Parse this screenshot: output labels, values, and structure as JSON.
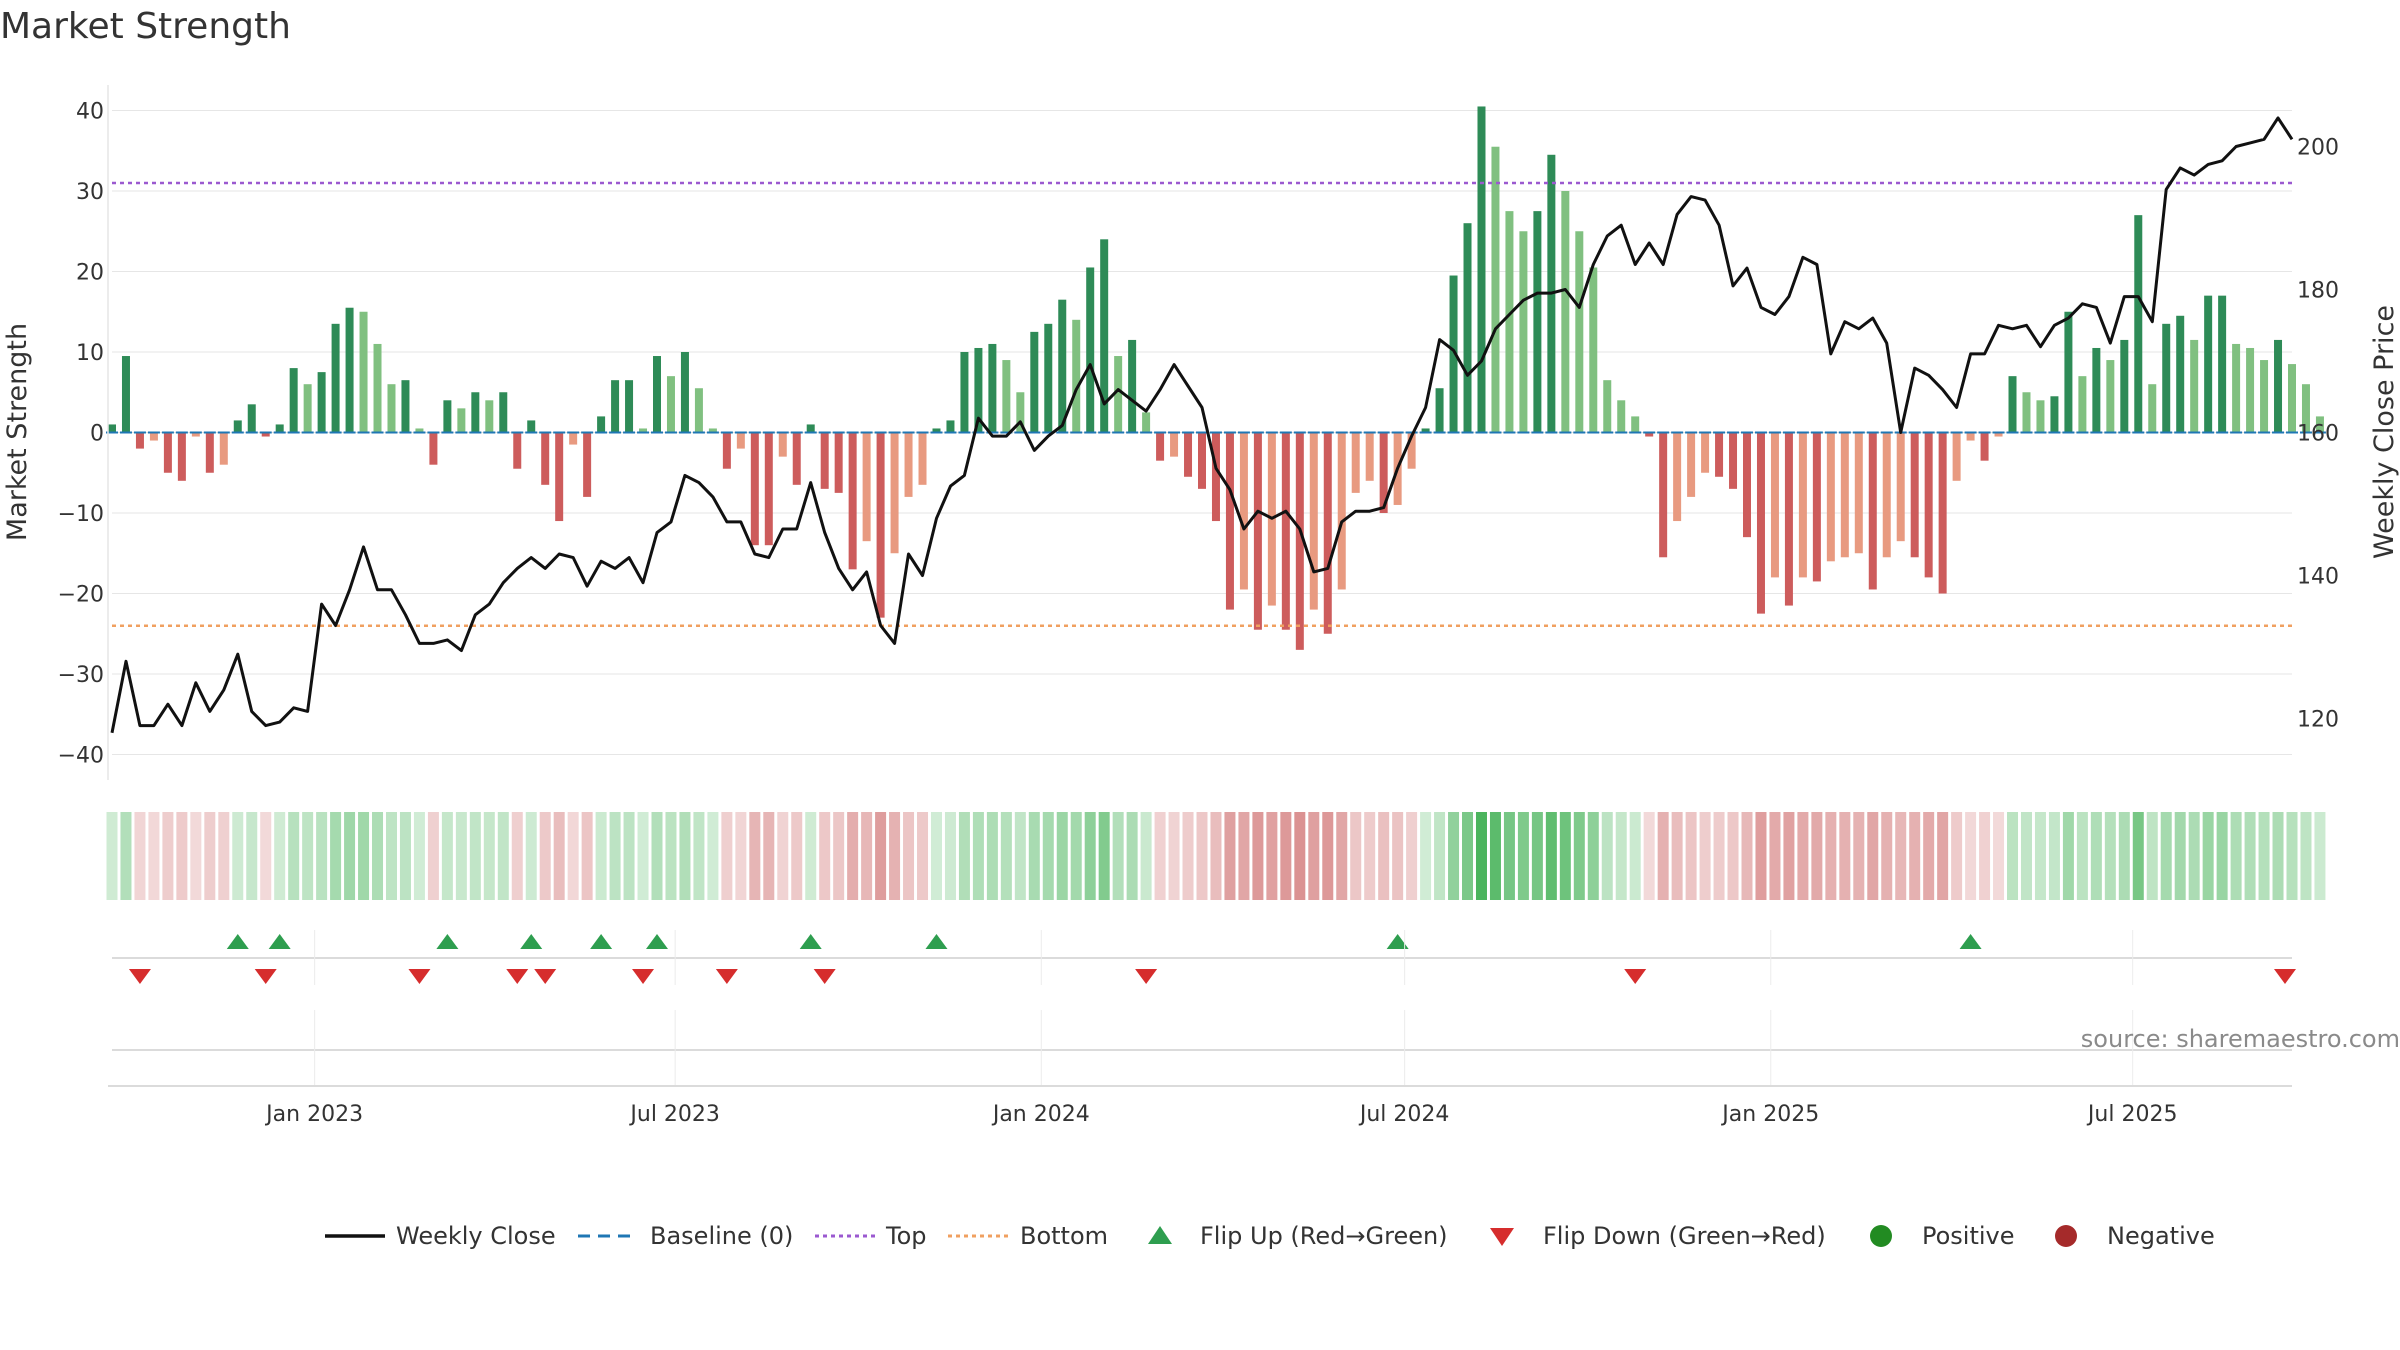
{
  "chart_data": {
    "type": "bar",
    "title": "Market Strength",
    "ylabel": "Market Strength",
    "y2label": "Weekly Close Price",
    "source": "source: sharemaestro.com",
    "ylim": [
      -43,
      42
    ],
    "yticks": [
      40,
      30,
      20,
      10,
      0,
      -10,
      -20,
      -30,
      -40
    ],
    "ytick_labels": [
      "40",
      "30",
      "20",
      "10",
      "0",
      "−10",
      "−20",
      "−30",
      "−40"
    ],
    "y2lim": [
      114.5,
      204.6
    ],
    "y2ticks": [
      200,
      180,
      160,
      140,
      120
    ],
    "y2tick_labels": [
      "200",
      "180",
      "160",
      "140",
      "120"
    ],
    "top_line": 31,
    "bottom_line": -24,
    "baseline": 0,
    "x_start_week": 0,
    "x_end_week": 156,
    "xticks": [
      {
        "label": "Jan 2023",
        "week": 14.5
      },
      {
        "label": "Jul 2023",
        "week": 40.3
      },
      {
        "label": "Jan 2024",
        "week": 66.5
      },
      {
        "label": "Jul 2024",
        "week": 92.5
      },
      {
        "label": "Jan 2025",
        "week": 118.7
      },
      {
        "label": "Jul 2025",
        "week": 144.6
      }
    ],
    "strength": [
      1,
      9.5,
      -2,
      -1,
      -5,
      -6,
      -0.5,
      -5,
      -4,
      1.5,
      3.5,
      -0.5,
      1,
      8,
      6,
      7.5,
      13.5,
      15.5,
      15,
      11,
      6,
      6.5,
      0.5,
      -4,
      4,
      3,
      5,
      4,
      5,
      -4.5,
      1.5,
      -6.5,
      -11,
      -1.5,
      -8,
      2,
      6.5,
      6.5,
      0.5,
      9.5,
      7,
      10,
      5.5,
      0.5,
      -4.5,
      -2,
      -14,
      -14,
      -3,
      -6.5,
      1,
      -7,
      -7.5,
      -17,
      -13.5,
      -23,
      -15,
      -8,
      -6.5,
      0.5,
      1.5,
      10,
      10.5,
      11,
      9,
      5,
      12.5,
      13.5,
      16.5,
      14,
      20.5,
      24,
      9.5,
      11.5,
      2.5,
      -3.5,
      -3,
      -5.5,
      -7,
      -11,
      -22,
      -19.5,
      -24.5,
      -21.5,
      -24.5,
      -27,
      -22,
      -25,
      -19.5,
      -7.5,
      -6,
      -10,
      -9,
      -4.5,
      0.5,
      5.5,
      19.5,
      26,
      40.5,
      35.5,
      27.5,
      25,
      27.5,
      34.5,
      30,
      25,
      20.5,
      6.5,
      4,
      2,
      -0.5,
      -15.5,
      -11,
      -8,
      -5,
      -5.5,
      -7,
      -13,
      -22.5,
      -18,
      -21.5,
      -18,
      -18.5,
      -16,
      -15.5,
      -15,
      -19.5,
      -15.5,
      -13.5,
      -15.5,
      -18,
      -20,
      -6,
      -1,
      -3.5,
      -0.5,
      7,
      5,
      4,
      4.5,
      15,
      7,
      10.5,
      9,
      11.5,
      27,
      6,
      13.5,
      14.5,
      11.5,
      17,
      17,
      11,
      10.5,
      9,
      11.5,
      8.5,
      6,
      2
    ],
    "weekly_close": [
      118,
      128,
      119,
      119,
      122,
      119,
      125,
      121,
      124,
      129,
      121,
      119,
      119.5,
      121.5,
      121,
      136,
      133,
      138,
      144,
      138,
      138,
      134.5,
      130.5,
      130.5,
      131,
      129.5,
      134.5,
      136,
      139,
      141,
      142.5,
      141,
      143,
      142.5,
      138.5,
      142,
      141,
      142.5,
      139,
      146,
      147.5,
      154,
      153,
      151,
      147.5,
      147.5,
      143,
      142.5,
      146.5,
      146.5,
      153,
      146,
      141,
      138,
      140.5,
      133,
      130.5,
      143,
      140,
      148,
      152.5,
      154,
      162,
      159.5,
      159.5,
      161.5,
      157.5,
      159.5,
      161,
      166,
      169.5,
      164,
      166,
      164.5,
      163,
      166,
      169.5,
      166.5,
      163.5,
      155,
      152,
      146.5,
      149,
      148,
      149,
      146.5,
      140.5,
      141,
      147.5,
      149,
      149,
      149.5,
      155,
      159.5,
      163.5,
      173,
      171.5,
      168,
      170,
      174.5,
      176.5,
      178.5,
      179.5,
      179.5,
      180,
      177.5,
      183.5,
      187.5,
      189,
      183.5,
      186.5,
      183.5,
      190.5,
      193,
      192.5,
      189,
      180.5,
      183,
      177.5,
      176.5,
      179,
      184.5,
      183.5,
      171,
      175.5,
      174.5,
      176,
      172.5,
      160,
      169,
      168,
      166,
      163.5,
      171,
      171,
      175,
      174.5,
      175,
      172,
      175,
      176,
      178,
      177.5,
      172.5,
      179,
      179,
      175.5,
      194,
      197,
      196,
      197.5,
      198,
      200,
      200.5,
      201,
      204,
      201
    ],
    "flip_up_weeks": [
      9,
      12,
      24,
      30,
      35,
      39,
      50,
      59,
      92,
      133
    ],
    "flip_down_weeks": [
      2,
      11,
      22,
      29,
      31,
      38,
      44,
      51,
      74,
      109,
      156
    ],
    "series": [
      {
        "name": "Weekly Close",
        "color": "#111111"
      },
      {
        "name": "Baseline (0)",
        "color": "#1f77b4"
      },
      {
        "name": "Top",
        "color": "#9b59d0"
      },
      {
        "name": "Bottom",
        "color": "#f0a060"
      },
      {
        "name": "Flip Up (Red→Green)",
        "color": "#2e9e4f"
      },
      {
        "name": "Flip Down (Green→Red)",
        "color": "#d62d2d"
      },
      {
        "name": "Positive",
        "color": "#228b22"
      },
      {
        "name": "Negative",
        "color": "#a52a2a"
      }
    ]
  }
}
